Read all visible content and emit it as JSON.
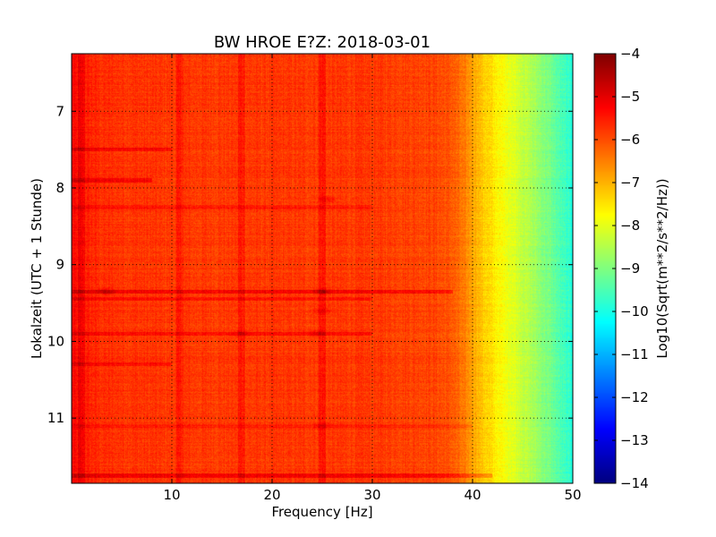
{
  "chart_data": {
    "type": "heatmap",
    "title": "BW HROE E?Z: 2018-03-01",
    "xlabel": "Frequency [Hz]",
    "ylabel": "Lokalzeit (UTC + 1 Stunde)",
    "xlim": [
      0,
      50
    ],
    "ylim": [
      11.85,
      6.25
    ],
    "xticks": [
      10,
      20,
      30,
      40,
      50
    ],
    "xtick_labels": [
      "10",
      "20",
      "30",
      "40",
      "50"
    ],
    "yticks": [
      7,
      8,
      9,
      10,
      11
    ],
    "ytick_labels": [
      "7",
      "8",
      "9",
      "10",
      "11"
    ],
    "y_inverted": true,
    "grid": true,
    "grid_style": "dotted",
    "colormap": "jet",
    "colorbar": {
      "label": "Log10(Sqrt(m**2/s**2/Hz))",
      "min": -14,
      "max": -4,
      "ticks": [
        -4,
        -5,
        -6,
        -7,
        -8,
        -9,
        -10,
        -11,
        -12,
        -13,
        -14
      ],
      "tick_labels": [
        "−4",
        "−5",
        "−6",
        "−7",
        "−8",
        "−9",
        "−10",
        "−11",
        "−12",
        "−13",
        "−14"
      ]
    },
    "spectrum_profile": {
      "frequency_hz": [
        0,
        1,
        3,
        10,
        20,
        30,
        36,
        38,
        40,
        41,
        42,
        43,
        44,
        45,
        46,
        47,
        48,
        49,
        50
      ],
      "level_log10": [
        -5.3,
        -5.5,
        -5.7,
        -5.8,
        -5.8,
        -5.8,
        -5.9,
        -6.1,
        -6.8,
        -7.2,
        -7.5,
        -7.8,
        -8.0,
        -8.3,
        -8.6,
        -8.9,
        -9.2,
        -9.6,
        -9.9
      ]
    },
    "high_energy_bands": [
      {
        "time": 7.5,
        "fmin": 0,
        "fmax": 10,
        "delta": 0.5
      },
      {
        "time": 7.9,
        "fmin": 0,
        "fmax": 8,
        "delta": 0.6
      },
      {
        "time": 8.25,
        "fmin": 0,
        "fmax": 30,
        "delta": 0.3
      },
      {
        "time": 9.35,
        "fmin": 0,
        "fmax": 38,
        "delta": 0.6
      },
      {
        "time": 9.45,
        "fmin": 0,
        "fmax": 30,
        "delta": 0.4
      },
      {
        "time": 9.9,
        "fmin": 0,
        "fmax": 30,
        "delta": 0.5
      },
      {
        "time": 10.3,
        "fmin": 0,
        "fmax": 10,
        "delta": 0.4
      },
      {
        "time": 11.1,
        "fmin": 0,
        "fmax": 40,
        "delta": 0.3
      },
      {
        "time": 11.75,
        "fmin": 0,
        "fmax": 46,
        "delta": 0.6
      }
    ],
    "high_energy_lines_hz": [
      {
        "frequency": 1.0,
        "delta": 0.4
      },
      {
        "frequency": 10.8,
        "delta": 0.35
      },
      {
        "frequency": 17.0,
        "delta": 0.4
      },
      {
        "frequency": 25.0,
        "delta": 0.45
      }
    ],
    "hotspots": [
      {
        "time": 8.15,
        "frequency": 25.5,
        "delta": 0.5
      },
      {
        "time": 9.35,
        "frequency": 25.0,
        "delta": 0.6
      },
      {
        "time": 9.6,
        "frequency": 25.0,
        "delta": 0.5
      },
      {
        "time": 9.9,
        "frequency": 24.5,
        "delta": 0.5
      },
      {
        "time": 9.35,
        "frequency": 3.5,
        "delta": 0.6
      },
      {
        "time": 9.9,
        "frequency": 17.0,
        "delta": 0.4
      },
      {
        "time": 11.1,
        "frequency": 25.0,
        "delta": 0.4
      }
    ]
  }
}
